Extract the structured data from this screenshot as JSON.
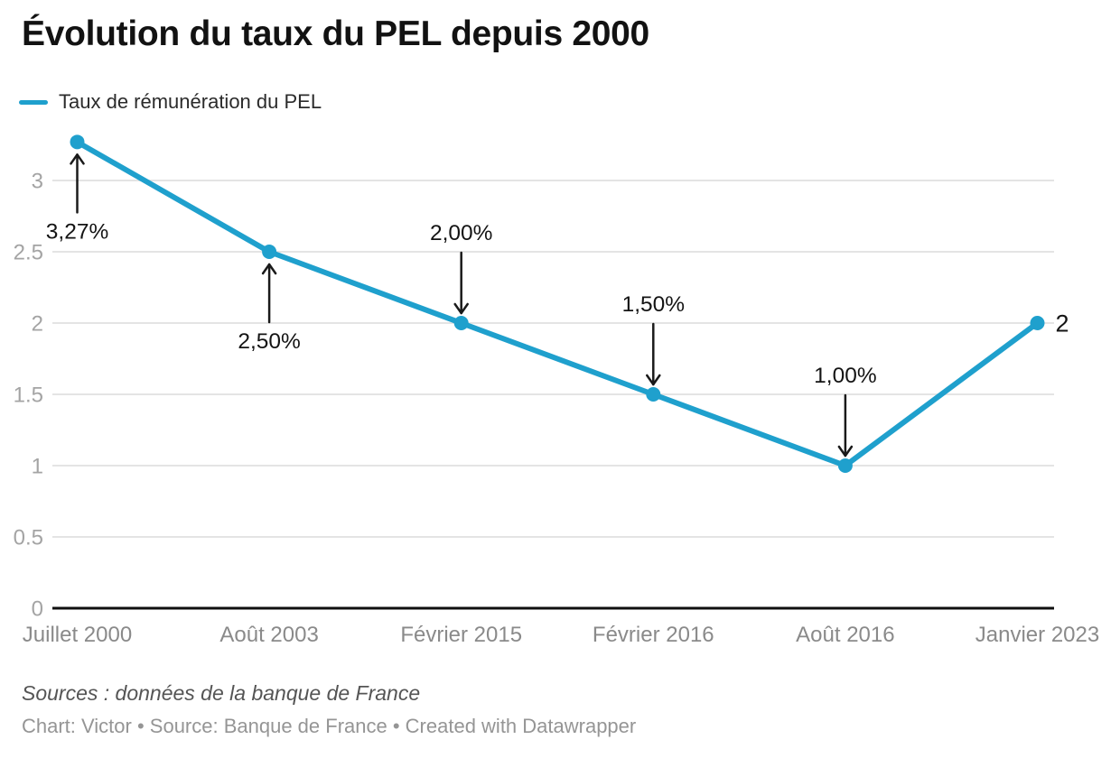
{
  "header": {
    "title": "Évolution du taux du PEL depuis 2000"
  },
  "legend": {
    "label": "Taux de rémunération du PEL",
    "swatch_color": "#1fa0cd"
  },
  "chart_data": {
    "type": "line",
    "title": "Évolution du taux du PEL depuis 2000",
    "categories": [
      "Juillet 2000",
      "Août 2003",
      "Février 2015",
      "Février 2016",
      "Août 2016",
      "Janvier 2023"
    ],
    "series": [
      {
        "name": "Taux de rémunération du PEL",
        "values": [
          3.27,
          2.5,
          2.0,
          1.5,
          1.0,
          2.0
        ]
      }
    ],
    "y_ticks": [
      0,
      0.5,
      1,
      1.5,
      2,
      2.5,
      3
    ],
    "y_tick_labels": [
      "0",
      "0.5",
      "1",
      "1.5",
      "2",
      "2.5",
      "3"
    ],
    "ylim": [
      0,
      3.4
    ],
    "grid": "horizontal",
    "legend_position": "top-left",
    "line_color": "#1fa0cd",
    "annotations": [
      {
        "label": "3,27%",
        "point": 0,
        "arrow": "up"
      },
      {
        "label": "2,50%",
        "point": 1,
        "arrow": "up"
      },
      {
        "label": "2,00%",
        "point": 2,
        "arrow": "down"
      },
      {
        "label": "1,50%",
        "point": 3,
        "arrow": "down"
      },
      {
        "label": "1,00%",
        "point": 4,
        "arrow": "down"
      }
    ],
    "end_label": {
      "label": "2",
      "point": 5
    }
  },
  "footer": {
    "sources": "Sources : données de la banque de France",
    "byline": "Chart: Victor • Source: Banque de France • Created with Datawrapper"
  }
}
